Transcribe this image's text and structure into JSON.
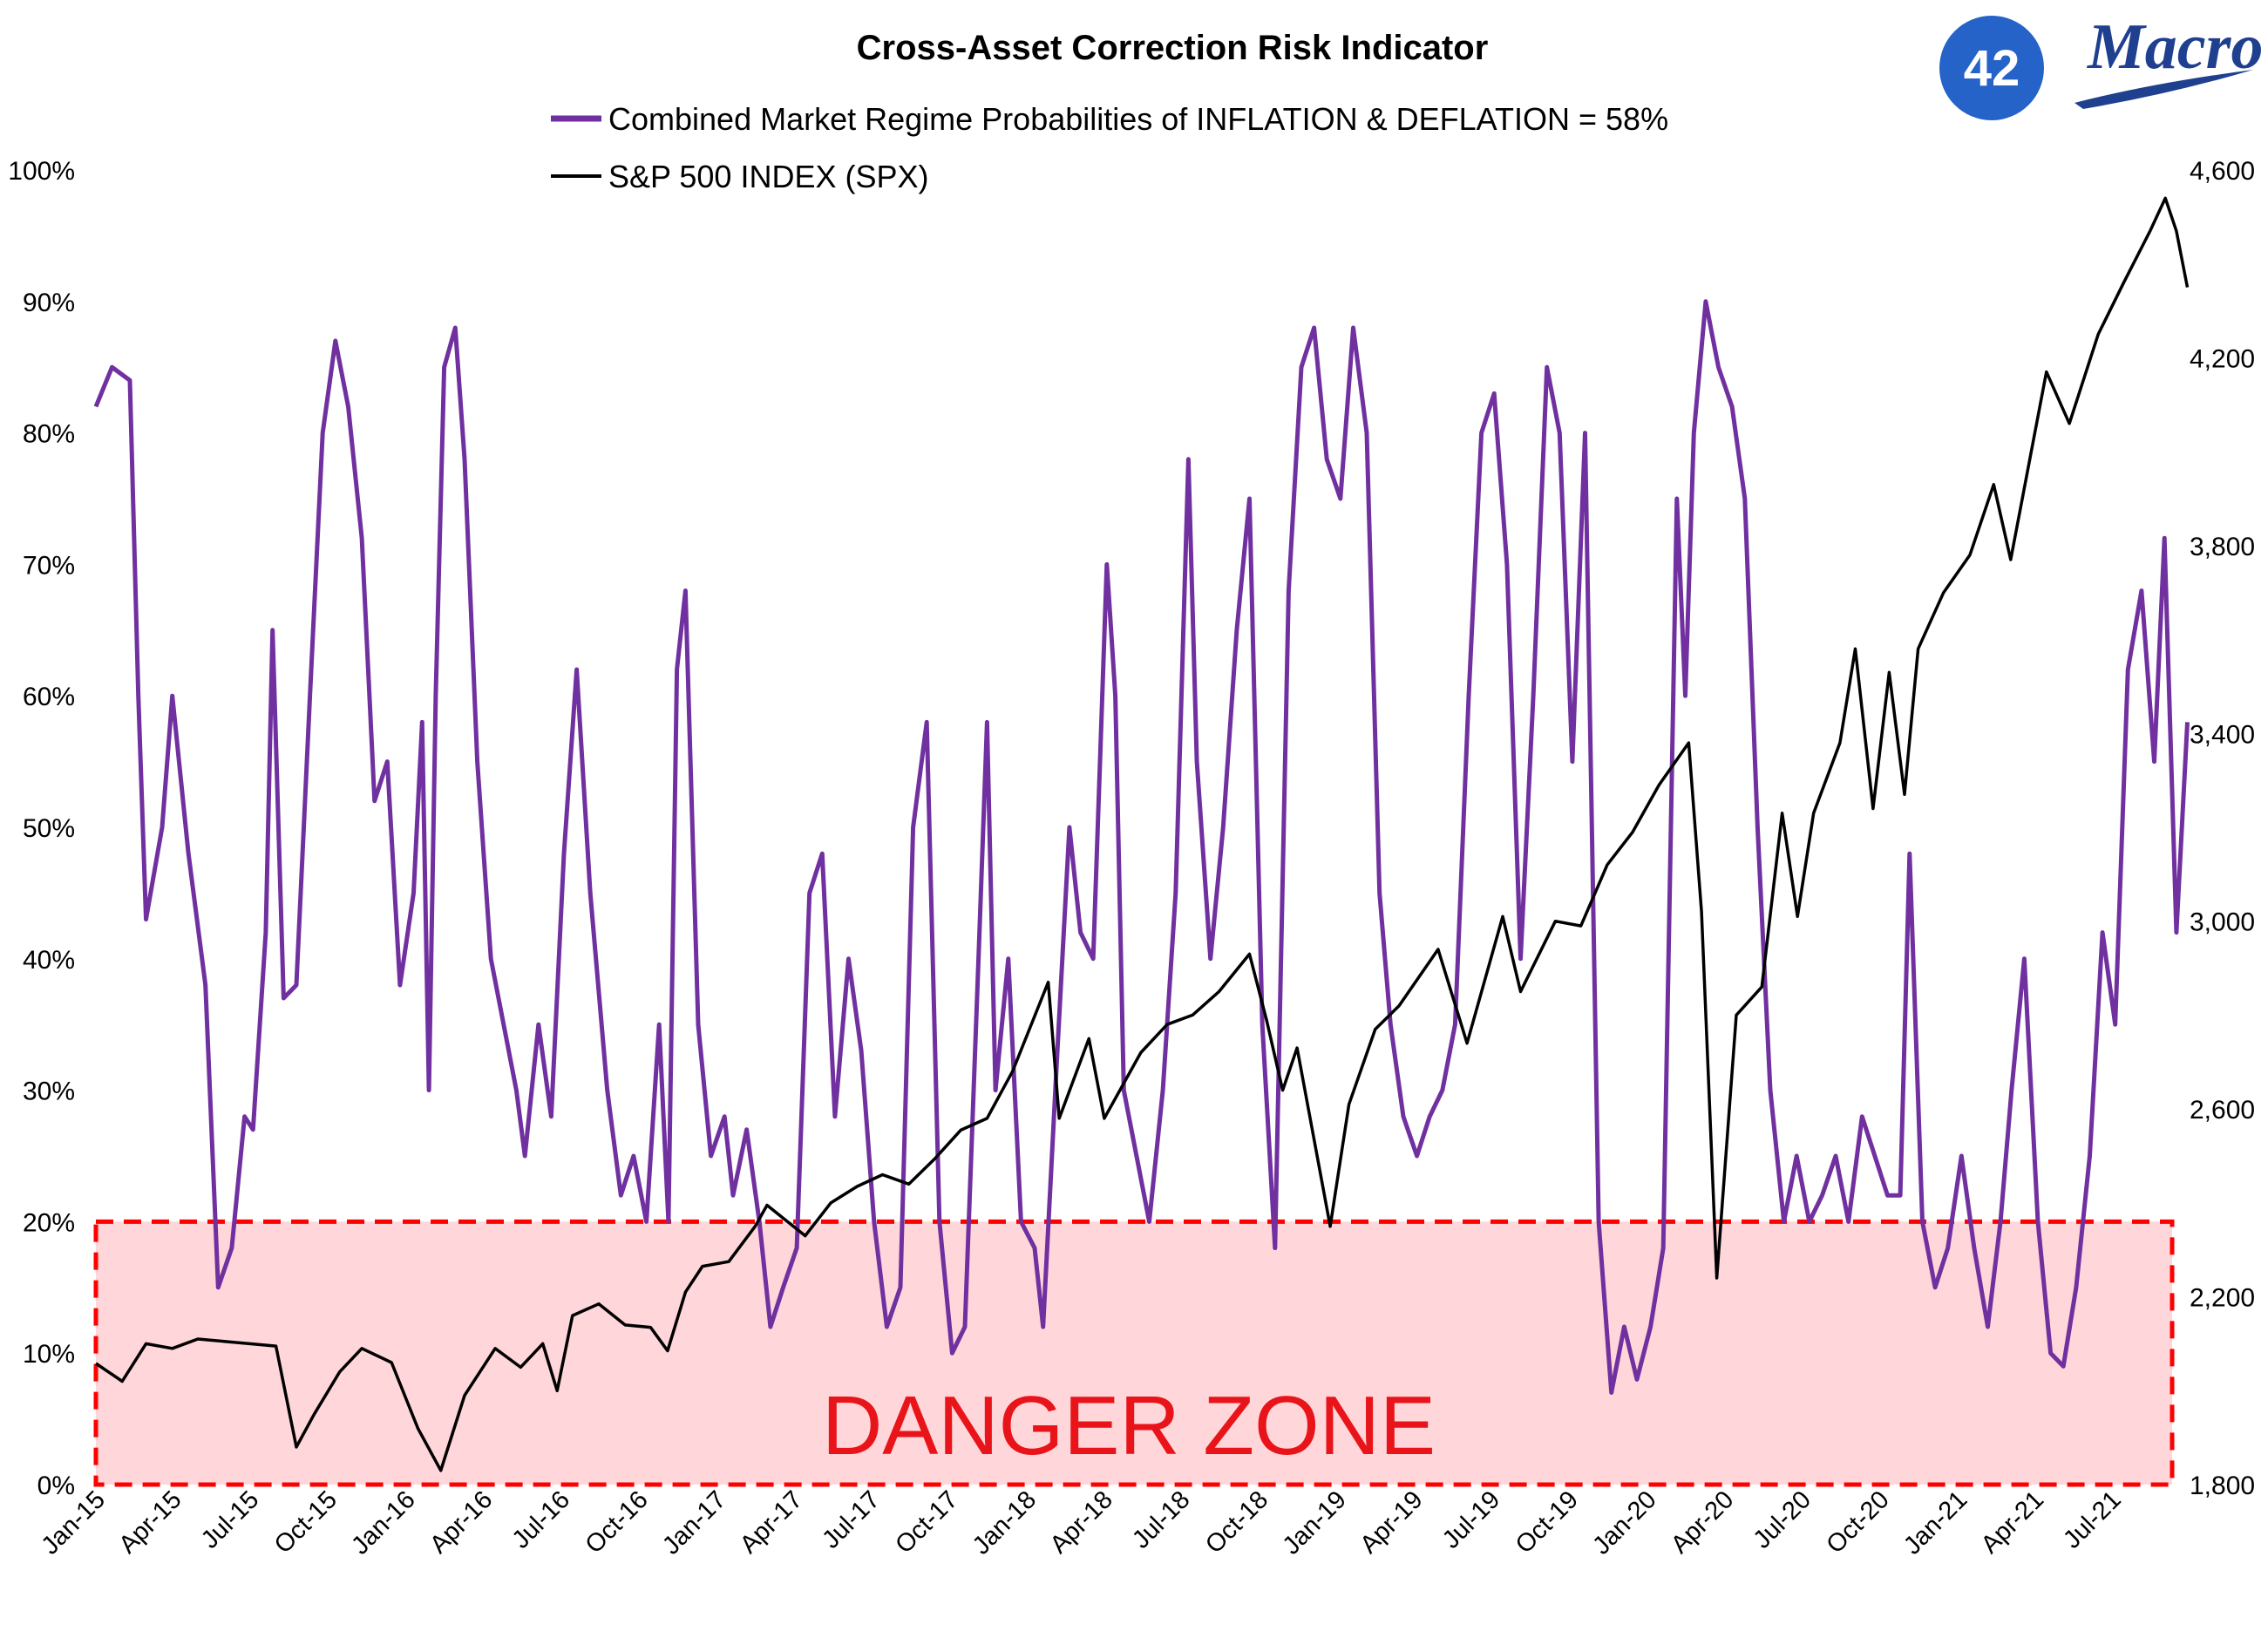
{
  "logo": {
    "number": "42",
    "word": "Macro"
  },
  "colors": {
    "inflation_deflation": "#7030a0",
    "spx": "#000000",
    "danger_fill": "#ffd6d9",
    "danger_border": "#ff0000",
    "danger_text": "#e8141a",
    "logo_blue": "#2563c9",
    "logo_navy": "#1f3f8f"
  },
  "danger_zone": {
    "label": "DANGER ZONE",
    "y_from": 0,
    "y_to": 20
  },
  "chart_data": {
    "type": "line",
    "title": "Cross-Asset Correction Risk Indicator",
    "x_tick_labels": [
      "Jan-15",
      "Apr-15",
      "Jul-15",
      "Oct-15",
      "Jan-16",
      "Apr-16",
      "Jul-16",
      "Oct-16",
      "Jan-17",
      "Apr-17",
      "Jul-17",
      "Oct-17",
      "Jan-18",
      "Apr-18",
      "Jul-18",
      "Oct-18",
      "Jan-19",
      "Apr-19",
      "Jul-19",
      "Oct-19",
      "Jan-20",
      "Apr-20",
      "Jul-20",
      "Oct-20",
      "Jan-21",
      "Apr-21",
      "Jul-21"
    ],
    "x_range": [
      "2015-01-01",
      "2021-09-10"
    ],
    "y_left": {
      "ticks": [
        0,
        10,
        20,
        30,
        40,
        50,
        60,
        70,
        80,
        90,
        100
      ],
      "tick_labels": [
        "0%",
        "10%",
        "20%",
        "30%",
        "40%",
        "50%",
        "60%",
        "70%",
        "80%",
        "90%",
        "100%"
      ],
      "range": [
        0,
        100
      ]
    },
    "y_right": {
      "ticks": [
        1800,
        2200,
        2600,
        3000,
        3400,
        3800,
        4200,
        4600
      ],
      "tick_labels": [
        "1,800",
        "2,200",
        "2,600",
        "3,000",
        "3,400",
        "3,800",
        "4,200",
        "4,600"
      ],
      "range": [
        1800,
        4600
      ]
    },
    "legend_placement": "top-center",
    "grid": false,
    "series": [
      {
        "name": "Combined Market Regime Probabilities of INFLATION & DEFLATION = 58%",
        "axis": "left",
        "points": [
          [
            "2015-01-01",
            82
          ],
          [
            "2015-01-20",
            85
          ],
          [
            "2015-02-10",
            84
          ],
          [
            "2015-02-20",
            60
          ],
          [
            "2015-03-01",
            43
          ],
          [
            "2015-03-20",
            50
          ],
          [
            "2015-04-01",
            60
          ],
          [
            "2015-04-20",
            48
          ],
          [
            "2015-05-10",
            38
          ],
          [
            "2015-05-25",
            15
          ],
          [
            "2015-06-10",
            18
          ],
          [
            "2015-06-25",
            28
          ],
          [
            "2015-07-05",
            27
          ],
          [
            "2015-07-20",
            42
          ],
          [
            "2015-07-28",
            65
          ],
          [
            "2015-08-10",
            37
          ],
          [
            "2015-08-25",
            38
          ],
          [
            "2015-09-10",
            60
          ],
          [
            "2015-09-25",
            80
          ],
          [
            "2015-10-10",
            87
          ],
          [
            "2015-10-25",
            82
          ],
          [
            "2015-11-10",
            72
          ],
          [
            "2015-11-25",
            52
          ],
          [
            "2015-12-10",
            55
          ],
          [
            "2015-12-25",
            38
          ],
          [
            "2016-01-10",
            45
          ],
          [
            "2016-01-20",
            58
          ],
          [
            "2016-01-28",
            30
          ],
          [
            "2016-02-05",
            60
          ],
          [
            "2016-02-15",
            85
          ],
          [
            "2016-02-28",
            88
          ],
          [
            "2016-03-10",
            78
          ],
          [
            "2016-03-25",
            55
          ],
          [
            "2016-04-10",
            40
          ],
          [
            "2016-04-25",
            35
          ],
          [
            "2016-05-10",
            30
          ],
          [
            "2016-05-20",
            25
          ],
          [
            "2016-06-05",
            35
          ],
          [
            "2016-06-20",
            28
          ],
          [
            "2016-07-05",
            48
          ],
          [
            "2016-07-20",
            62
          ],
          [
            "2016-08-05",
            45
          ],
          [
            "2016-08-25",
            30
          ],
          [
            "2016-09-10",
            22
          ],
          [
            "2016-09-25",
            25
          ],
          [
            "2016-10-10",
            20
          ],
          [
            "2016-10-25",
            35
          ],
          [
            "2016-11-05",
            20
          ],
          [
            "2016-11-15",
            62
          ],
          [
            "2016-11-25",
            68
          ],
          [
            "2016-12-10",
            35
          ],
          [
            "2016-12-25",
            25
          ],
          [
            "2017-01-10",
            28
          ],
          [
            "2017-01-20",
            22
          ],
          [
            "2017-02-05",
            27
          ],
          [
            "2017-02-20",
            20
          ],
          [
            "2017-03-05",
            12
          ],
          [
            "2017-03-20",
            15
          ],
          [
            "2017-04-05",
            18
          ],
          [
            "2017-04-20",
            45
          ],
          [
            "2017-05-05",
            48
          ],
          [
            "2017-05-20",
            28
          ],
          [
            "2017-06-05",
            40
          ],
          [
            "2017-06-20",
            33
          ],
          [
            "2017-07-05",
            20
          ],
          [
            "2017-07-20",
            12
          ],
          [
            "2017-08-05",
            15
          ],
          [
            "2017-08-20",
            50
          ],
          [
            "2017-09-05",
            58
          ],
          [
            "2017-09-20",
            20
          ],
          [
            "2017-10-05",
            10
          ],
          [
            "2017-10-20",
            12
          ],
          [
            "2017-11-05",
            40
          ],
          [
            "2017-11-15",
            58
          ],
          [
            "2017-11-25",
            30
          ],
          [
            "2017-12-10",
            40
          ],
          [
            "2017-12-25",
            20
          ],
          [
            "2018-01-10",
            18
          ],
          [
            "2018-01-20",
            12
          ],
          [
            "2018-02-05",
            32
          ],
          [
            "2018-02-20",
            50
          ],
          [
            "2018-03-05",
            42
          ],
          [
            "2018-03-20",
            40
          ],
          [
            "2018-04-05",
            70
          ],
          [
            "2018-04-15",
            60
          ],
          [
            "2018-04-25",
            30
          ],
          [
            "2018-05-10",
            25
          ],
          [
            "2018-05-25",
            20
          ],
          [
            "2018-06-10",
            30
          ],
          [
            "2018-06-25",
            45
          ],
          [
            "2018-07-10",
            78
          ],
          [
            "2018-07-20",
            55
          ],
          [
            "2018-08-05",
            40
          ],
          [
            "2018-08-20",
            50
          ],
          [
            "2018-09-05",
            65
          ],
          [
            "2018-09-20",
            75
          ],
          [
            "2018-10-05",
            35
          ],
          [
            "2018-10-20",
            18
          ],
          [
            "2018-11-05",
            68
          ],
          [
            "2018-11-20",
            85
          ],
          [
            "2018-12-05",
            88
          ],
          [
            "2018-12-20",
            78
          ],
          [
            "2019-01-05",
            75
          ],
          [
            "2019-01-20",
            88
          ],
          [
            "2019-02-05",
            80
          ],
          [
            "2019-02-20",
            45
          ],
          [
            "2019-03-05",
            35
          ],
          [
            "2019-03-20",
            28
          ],
          [
            "2019-04-05",
            25
          ],
          [
            "2019-04-20",
            28
          ],
          [
            "2019-05-05",
            30
          ],
          [
            "2019-05-20",
            35
          ],
          [
            "2019-06-05",
            60
          ],
          [
            "2019-06-20",
            80
          ],
          [
            "2019-07-05",
            83
          ],
          [
            "2019-07-20",
            70
          ],
          [
            "2019-08-05",
            40
          ],
          [
            "2019-08-20",
            60
          ],
          [
            "2019-09-05",
            85
          ],
          [
            "2019-09-20",
            80
          ],
          [
            "2019-10-05",
            55
          ],
          [
            "2019-10-20",
            80
          ],
          [
            "2019-11-05",
            20
          ],
          [
            "2019-11-20",
            7
          ],
          [
            "2019-12-05",
            12
          ],
          [
            "2019-12-20",
            8
          ],
          [
            "2020-01-05",
            12
          ],
          [
            "2020-01-20",
            18
          ],
          [
            "2020-02-05",
            75
          ],
          [
            "2020-02-15",
            60
          ],
          [
            "2020-02-25",
            80
          ],
          [
            "2020-03-10",
            90
          ],
          [
            "2020-03-25",
            85
          ],
          [
            "2020-04-10",
            82
          ],
          [
            "2020-04-25",
            75
          ],
          [
            "2020-05-10",
            50
          ],
          [
            "2020-05-25",
            30
          ],
          [
            "2020-06-10",
            20
          ],
          [
            "2020-06-25",
            25
          ],
          [
            "2020-07-10",
            20
          ],
          [
            "2020-07-25",
            22
          ],
          [
            "2020-08-10",
            25
          ],
          [
            "2020-08-25",
            20
          ],
          [
            "2020-09-10",
            28
          ],
          [
            "2020-09-25",
            25
          ],
          [
            "2020-10-10",
            22
          ],
          [
            "2020-10-25",
            22
          ],
          [
            "2020-11-05",
            48
          ],
          [
            "2020-11-20",
            20
          ],
          [
            "2020-12-05",
            15
          ],
          [
            "2020-12-20",
            18
          ],
          [
            "2021-01-05",
            25
          ],
          [
            "2021-01-20",
            18
          ],
          [
            "2021-02-05",
            12
          ],
          [
            "2021-02-20",
            20
          ],
          [
            "2021-03-05",
            30
          ],
          [
            "2021-03-20",
            40
          ],
          [
            "2021-04-05",
            20
          ],
          [
            "2021-04-20",
            10
          ],
          [
            "2021-05-05",
            9
          ],
          [
            "2021-05-20",
            15
          ],
          [
            "2021-06-05",
            25
          ],
          [
            "2021-06-20",
            42
          ],
          [
            "2021-07-05",
            35
          ],
          [
            "2021-07-20",
            62
          ],
          [
            "2021-08-05",
            68
          ],
          [
            "2021-08-20",
            55
          ],
          [
            "2021-09-01",
            72
          ],
          [
            "2021-09-15",
            42
          ],
          [
            "2021-09-28",
            58
          ]
        ]
      },
      {
        "name": "S&P 500 INDEX (SPX)",
        "axis": "right",
        "points": [
          [
            "2015-01-01",
            2058
          ],
          [
            "2015-02-01",
            2020
          ],
          [
            "2015-03-01",
            2100
          ],
          [
            "2015-04-01",
            2090
          ],
          [
            "2015-05-01",
            2110
          ],
          [
            "2015-06-01",
            2105
          ],
          [
            "2015-07-01",
            2100
          ],
          [
            "2015-08-01",
            2095
          ],
          [
            "2015-08-25",
            1880
          ],
          [
            "2015-09-15",
            1950
          ],
          [
            "2015-10-15",
            2040
          ],
          [
            "2015-11-10",
            2090
          ],
          [
            "2015-12-15",
            2060
          ],
          [
            "2016-01-15",
            1920
          ],
          [
            "2016-02-11",
            1830
          ],
          [
            "2016-03-10",
            1990
          ],
          [
            "2016-04-15",
            2090
          ],
          [
            "2016-05-15",
            2050
          ],
          [
            "2016-06-10",
            2100
          ],
          [
            "2016-06-27",
            2000
          ],
          [
            "2016-07-15",
            2160
          ],
          [
            "2016-08-15",
            2185
          ],
          [
            "2016-09-15",
            2140
          ],
          [
            "2016-10-15",
            2135
          ],
          [
            "2016-11-04",
            2085
          ],
          [
            "2016-11-25",
            2210
          ],
          [
            "2016-12-15",
            2265
          ],
          [
            "2017-01-15",
            2275
          ],
          [
            "2017-02-15",
            2350
          ],
          [
            "2017-03-01",
            2395
          ],
          [
            "2017-04-15",
            2330
          ],
          [
            "2017-05-15",
            2400
          ],
          [
            "2017-06-15",
            2435
          ],
          [
            "2017-07-15",
            2460
          ],
          [
            "2017-08-15",
            2440
          ],
          [
            "2017-09-15",
            2495
          ],
          [
            "2017-10-15",
            2555
          ],
          [
            "2017-11-15",
            2580
          ],
          [
            "2017-12-15",
            2680
          ],
          [
            "2018-01-26",
            2870
          ],
          [
            "2018-02-08",
            2580
          ],
          [
            "2018-03-15",
            2750
          ],
          [
            "2018-04-02",
            2580
          ],
          [
            "2018-05-15",
            2720
          ],
          [
            "2018-06-15",
            2780
          ],
          [
            "2018-07-15",
            2800
          ],
          [
            "2018-08-15",
            2850
          ],
          [
            "2018-09-20",
            2930
          ],
          [
            "2018-10-10",
            2790
          ],
          [
            "2018-10-29",
            2640
          ],
          [
            "2018-11-15",
            2730
          ],
          [
            "2018-12-24",
            2350
          ],
          [
            "2019-01-15",
            2610
          ],
          [
            "2019-02-15",
            2770
          ],
          [
            "2019-03-15",
            2820
          ],
          [
            "2019-04-30",
            2940
          ],
          [
            "2019-06-03",
            2740
          ],
          [
            "2019-07-15",
            3010
          ],
          [
            "2019-08-05",
            2850
          ],
          [
            "2019-09-15",
            3000
          ],
          [
            "2019-10-15",
            2990
          ],
          [
            "2019-11-15",
            3120
          ],
          [
            "2019-12-15",
            3190
          ],
          [
            "2020-01-15",
            3290
          ],
          [
            "2020-02-19",
            3380
          ],
          [
            "2020-03-05",
            3020
          ],
          [
            "2020-03-23",
            2240
          ],
          [
            "2020-04-15",
            2800
          ],
          [
            "2020-05-15",
            2860
          ],
          [
            "2020-06-08",
            3230
          ],
          [
            "2020-06-26",
            3010
          ],
          [
            "2020-07-15",
            3230
          ],
          [
            "2020-08-15",
            3380
          ],
          [
            "2020-09-02",
            3580
          ],
          [
            "2020-09-23",
            3240
          ],
          [
            "2020-10-12",
            3530
          ],
          [
            "2020-10-30",
            3270
          ],
          [
            "2020-11-15",
            3580
          ],
          [
            "2020-12-15",
            3700
          ],
          [
            "2021-01-15",
            3780
          ],
          [
            "2021-02-12",
            3930
          ],
          [
            "2021-03-04",
            3770
          ],
          [
            "2021-04-15",
            4170
          ],
          [
            "2021-05-12",
            4060
          ],
          [
            "2021-06-15",
            4250
          ],
          [
            "2021-07-15",
            4360
          ],
          [
            "2021-08-15",
            4470
          ],
          [
            "2021-09-02",
            4540
          ],
          [
            "2021-09-15",
            4470
          ],
          [
            "2021-09-28",
            4350
          ]
        ]
      }
    ]
  }
}
